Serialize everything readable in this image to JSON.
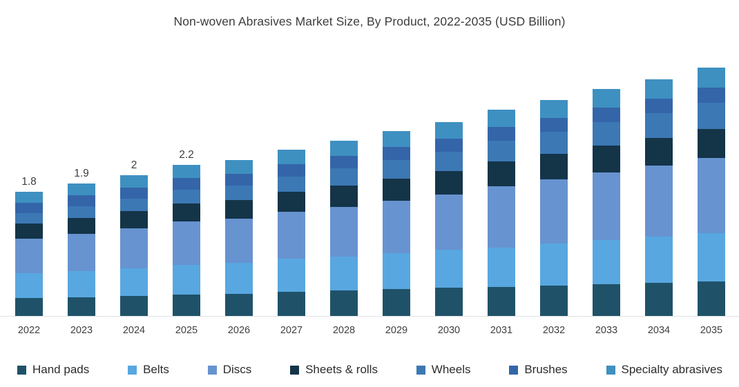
{
  "title": "Non-woven Abrasives Market Size, By Product, 2022-2035 (USD Billion)",
  "chart_data": {
    "type": "bar",
    "stacked": true,
    "title": "Non-woven Abrasives Market Size, By Product, 2022-2035 (USD Billion)",
    "xlabel": "",
    "ylabel": "",
    "unit": "USD Billion",
    "ylim": [
      0,
      3.8
    ],
    "grid": false,
    "y_axis_visible": false,
    "legend_position": "bottom",
    "categories": [
      "2022",
      "2023",
      "2024",
      "2025",
      "2026",
      "2027",
      "2028",
      "2029",
      "2030",
      "2031",
      "2032",
      "2033",
      "2034",
      "2035"
    ],
    "series": [
      {
        "name": "Hand pads",
        "color": "#1f5269",
        "values": [
          0.26,
          0.27,
          0.29,
          0.31,
          0.32,
          0.35,
          0.37,
          0.39,
          0.41,
          0.42,
          0.44,
          0.46,
          0.48,
          0.5
        ]
      },
      {
        "name": "Belts",
        "color": "#58a7e0",
        "values": [
          0.36,
          0.38,
          0.4,
          0.43,
          0.45,
          0.48,
          0.49,
          0.52,
          0.55,
          0.57,
          0.61,
          0.64,
          0.67,
          0.7
        ]
      },
      {
        "name": "Discs",
        "color": "#6793d0",
        "values": [
          0.5,
          0.54,
          0.58,
          0.63,
          0.64,
          0.68,
          0.72,
          0.76,
          0.8,
          0.89,
          0.93,
          0.98,
          1.03,
          1.09
        ]
      },
      {
        "name": "Sheets & rolls",
        "color": "#143448",
        "values": [
          0.22,
          0.23,
          0.25,
          0.26,
          0.27,
          0.29,
          0.31,
          0.32,
          0.34,
          0.36,
          0.37,
          0.39,
          0.4,
          0.42
        ]
      },
      {
        "name": "Wheels",
        "color": "#3c78b4",
        "values": [
          0.15,
          0.17,
          0.18,
          0.2,
          0.21,
          0.22,
          0.25,
          0.27,
          0.28,
          0.3,
          0.32,
          0.34,
          0.36,
          0.38
        ]
      },
      {
        "name": "Brushes",
        "color": "#3465a9",
        "values": [
          0.15,
          0.16,
          0.16,
          0.17,
          0.17,
          0.18,
          0.18,
          0.19,
          0.19,
          0.2,
          0.2,
          0.21,
          0.21,
          0.22
        ]
      },
      {
        "name": "Specialty abrasives",
        "color": "#3e90c1",
        "values": [
          0.16,
          0.17,
          0.18,
          0.19,
          0.2,
          0.21,
          0.22,
          0.23,
          0.24,
          0.25,
          0.26,
          0.27,
          0.28,
          0.29
        ]
      }
    ],
    "bar_totals": [
      1.8,
      1.92,
      2.04,
      2.19,
      2.26,
      2.41,
      2.54,
      2.68,
      2.81,
      2.99,
      3.13,
      3.29,
      3.43,
      3.6
    ],
    "bar_labels": [
      "1.8",
      "1.9",
      "2",
      "2.2",
      "",
      "",
      "",
      "",
      "",
      "",
      "",
      "",
      "",
      ""
    ]
  }
}
